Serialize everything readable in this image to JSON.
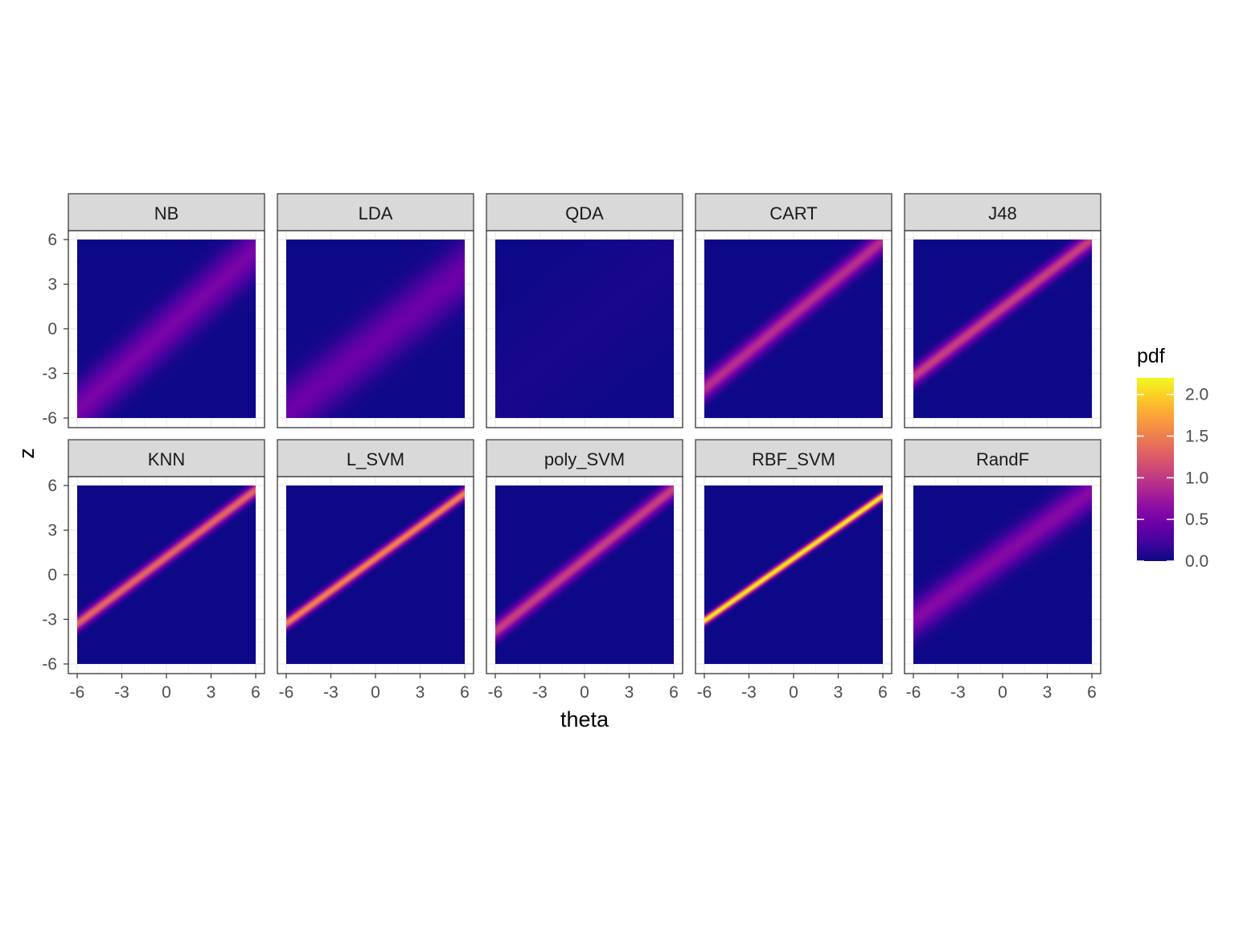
{
  "chart_data": {
    "type": "heatmap",
    "layout": "facet grid 2 rows x 5 columns",
    "xlabel": "theta",
    "ylabel": "z",
    "xlim": [
      -6,
      6
    ],
    "ylim": [
      -6,
      6
    ],
    "x_ticks": [
      -6,
      -3,
      0,
      3,
      6
    ],
    "y_ticks": [
      -6,
      -3,
      0,
      3,
      6
    ],
    "x_tick_labels": [
      "-6",
      "-3",
      "0",
      "3",
      "6"
    ],
    "y_tick_labels": [
      "-6",
      "-3",
      "0",
      "3",
      "6"
    ],
    "grid": true,
    "colorscale": "plasma",
    "legend": {
      "title": "pdf",
      "position": "right",
      "range": [
        0,
        2.2
      ],
      "ticks": [
        0.0,
        0.5,
        1.0,
        1.5,
        2.0
      ],
      "tick_labels": [
        "0.0",
        "0.5",
        "1.0",
        "1.5",
        "2.0"
      ]
    },
    "panels": [
      {
        "label": "NB",
        "slope": 0.9,
        "intercept": -0.1,
        "sigma": 1.2,
        "peak": 0.52
      },
      {
        "label": "LDA",
        "slope": 0.8,
        "intercept": -0.9,
        "sigma": 1.4,
        "peak": 0.45
      },
      {
        "label": "QDA",
        "slope": 0.8,
        "intercept": 0.0,
        "sigma": 3.0,
        "peak": 0.05
      },
      {
        "label": "CART",
        "slope": 0.83,
        "intercept": 0.95,
        "sigma": 0.55,
        "peak": 0.92
      },
      {
        "label": "J48",
        "slope": 0.77,
        "intercept": 1.4,
        "sigma": 0.45,
        "peak": 1.05
      },
      {
        "label": "KNN",
        "slope": 0.75,
        "intercept": 1.2,
        "sigma": 0.33,
        "peak": 1.35
      },
      {
        "label": "L_SVM",
        "slope": 0.73,
        "intercept": 1.1,
        "sigma": 0.28,
        "peak": 1.55
      },
      {
        "label": "poly_SVM",
        "slope": 0.8,
        "intercept": 1.0,
        "sigma": 0.45,
        "peak": 1.05
      },
      {
        "label": "RBF_SVM",
        "slope": 0.7,
        "intercept": 1.1,
        "sigma": 0.2,
        "peak": 2.2
      },
      {
        "label": "RandF",
        "slope": 0.72,
        "intercept": 1.3,
        "sigma": 0.85,
        "peak": 0.6
      }
    ]
  }
}
